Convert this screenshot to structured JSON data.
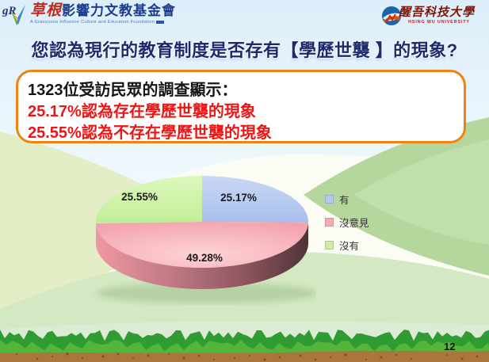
{
  "header": {
    "left_logo": {
      "monogram": "gR",
      "name_accent": "草根",
      "name_rest": "影響力文教基金會",
      "caption": "A Grassroots Influence Culture and Education Foundation"
    },
    "right_logo": {
      "name": "醒吾科技大學",
      "caption": "HSING WU UNIVERSITY"
    }
  },
  "title": "您認為現行的教育制度是否存有【學歷世襲 】的現象?",
  "summary_box": {
    "line1": "1323位受訪民眾的調查顯示：",
    "line2": "25.17%認為存在學歷世襲的現象",
    "line3": "25.55%認為不存在學歷世襲的現象"
  },
  "chart_data": {
    "type": "pie",
    "style": "3d",
    "labels": [
      "有",
      "沒意見",
      "沒有"
    ],
    "values": [
      25.17,
      49.28,
      25.55
    ],
    "value_labels": [
      "25.17%",
      "49.28%",
      "25.55%"
    ],
    "colors": [
      "#b6c9f0",
      "#f6abb3",
      "#ccf0a3"
    ],
    "legend_position": "right",
    "start_angle_deg": 0,
    "direction": "clockwise"
  },
  "page_number": "12",
  "colors": {
    "title_navy": "#1e2a6e",
    "box_border_orange": "#ef8312",
    "box_text_red": "#ee1515",
    "sky_blue": "#dceef9",
    "hill_light_green": "#e3eec6",
    "hill_medium_green": "#b5d79e",
    "grass_dark": "#2f9b33",
    "grass_light": "#55b43a",
    "dirt_brown": "#a9773d"
  }
}
